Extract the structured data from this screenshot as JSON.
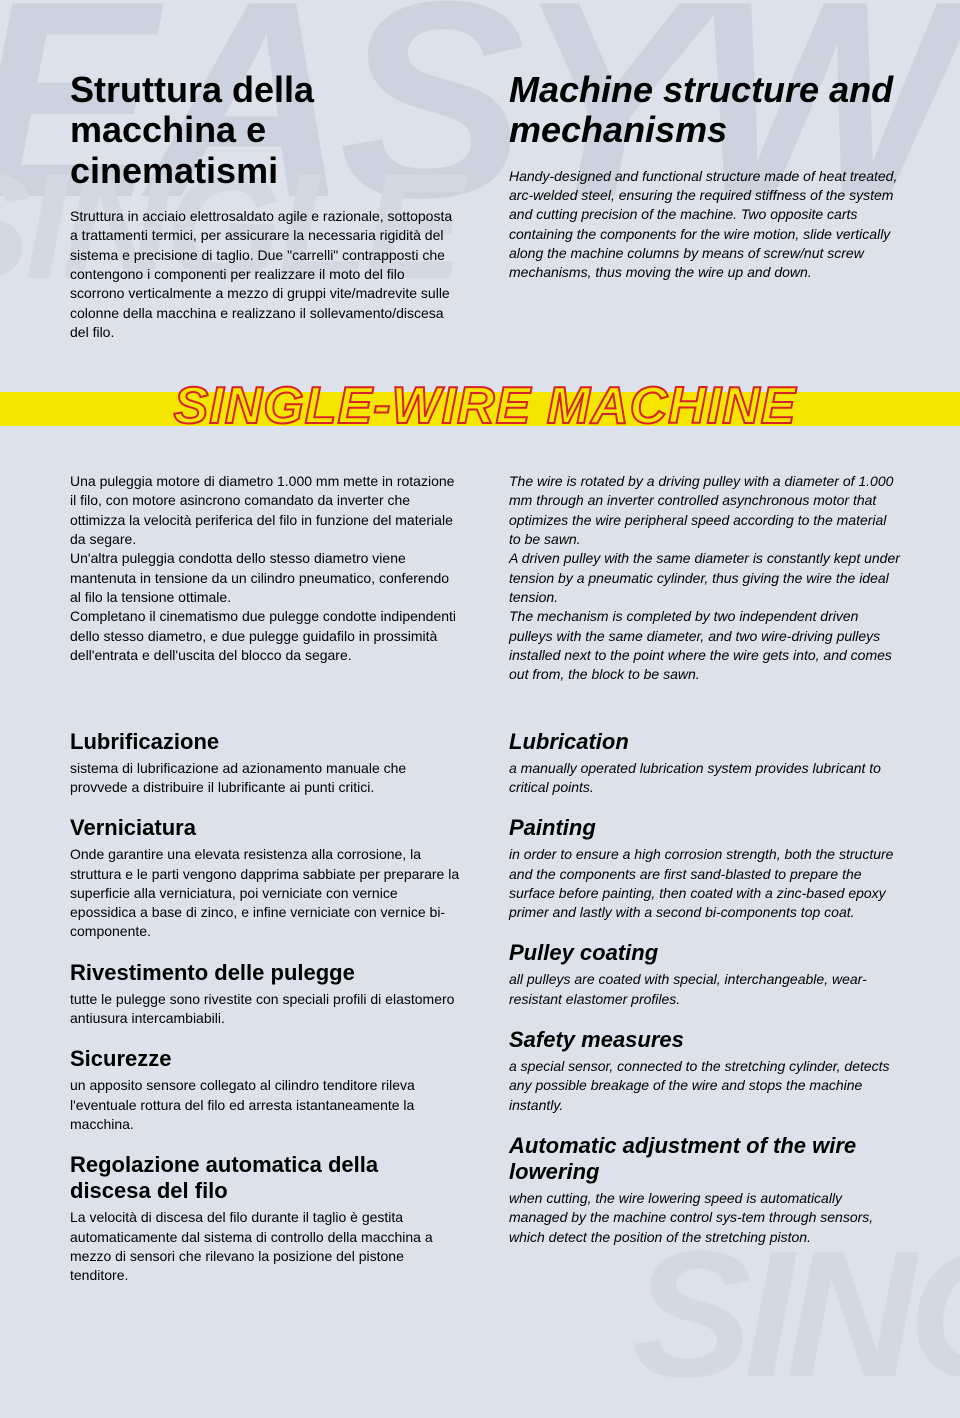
{
  "watermarks": {
    "top": "EASYW",
    "top2": "SINGLE",
    "bottom": "SING"
  },
  "header": {
    "it_title": "Struttura della macchina e cinematismi",
    "en_title": "Machine structure and mechanisms",
    "it_body": "Struttura in acciaio elettrosaldato agile e razionale, sottoposta a trattamenti termici, per assicurare la necessaria rigidità del sistema e precisione di taglio. Due \"carrelli\" contrapposti che contengono i componenti per realizzare il moto del filo scorrono verticalmente a mezzo di gruppi vite/madrevite sulle colonne della macchina e realizzano il sollevamento/discesa del filo.",
    "en_body": "Handy-designed and functional structure made of heat treated, arc-welded steel, ensuring the required stiffness of the system and cutting precision of the machine. Two opposite carts containing the components for the wire motion, slide vertically along the machine columns by means of screw/nut screw mechanisms, thus moving the wire up and down."
  },
  "banner": "SINGLE-WIRE MACHINE",
  "mid": {
    "it_body": "Una puleggia motore di diametro 1.000 mm mette in rotazione il filo, con motore asincrono comandato da inverter che ottimizza la velocità periferica del filo in funzione del materiale da segare.\nUn'altra puleggia condotta dello stesso diametro viene mantenuta in tensione da un cilindro pneumatico, conferendo al filo la tensione ottimale.\nCompletano il cinematismo due pulegge condotte indipendenti dello stesso diametro, e due pulegge guidafilo in prossimità dell'entrata e dell'uscita del blocco da segare.",
    "en_body": "The wire is rotated by a driving pulley with a diameter of 1.000 mm through an inverter controlled asynchronous motor that optimizes the wire peripheral speed according to the material to be sawn.\nA driven pulley with the same diameter is constantly kept under tension by a pneumatic cylinder, thus giving the wire the ideal tension.\nThe mechanism is completed by two independent driven pulleys with the same diameter, and two wire-driving pulleys installed next to the point where the wire gets into, and comes out from, the block to be sawn."
  },
  "sections": [
    {
      "it_title": "Lubrificazione",
      "it_body": "sistema di lubrificazione ad azionamento manuale che provvede a distribuire il lubrificante ai punti critici.",
      "en_title": "Lubrication",
      "en_body": "a manually operated lubrication system provides lubricant to critical points."
    },
    {
      "it_title": "Verniciatura",
      "it_body": "Onde garantire una elevata resistenza alla corrosione, la struttura e le parti vengono dapprima sabbiate per preparare la superficie alla verniciatura, poi verniciate con vernice epossidica a base di zinco, e infine verniciate con vernice bi-componente.",
      "en_title": "Painting",
      "en_body": "in order to ensure a high corrosion strength, both the structure and the components are first sand-blasted to prepare the surface before painting, then coated with a zinc-based epoxy primer and lastly with a second bi-components top coat."
    },
    {
      "it_title": "Rivestimento delle pulegge",
      "it_body": "tutte le pulegge sono rivestite con speciali profili di elastomero antiusura intercambiabili.",
      "en_title": "Pulley coating",
      "en_body": "all pulleys are coated with special, interchangeable, wear-resistant elastomer profiles."
    },
    {
      "it_title": "Sicurezze",
      "it_body": "un apposito sensore collegato al cilindro tenditore rileva l'eventuale rottura del filo ed arresta istantaneamente la macchina.",
      "en_title": "Safety measures",
      "en_body": "a special sensor, connected to the stretching cylinder, detects any possible breakage of the wire and stops the machine instantly."
    },
    {
      "it_title": "Regolazione automatica della discesa del filo",
      "it_body": "La velocità di discesa del filo durante il taglio è gestita automaticamente dal sistema di controllo della macchina a mezzo di sensori che rilevano la posizione del pistone tenditore.",
      "en_title": "Automatic adjustment of the wire lowering",
      "en_body": "when cutting, the wire lowering speed is automatically managed by the machine control sys-tem through sensors, which detect the position of the stretching piston."
    }
  ]
}
